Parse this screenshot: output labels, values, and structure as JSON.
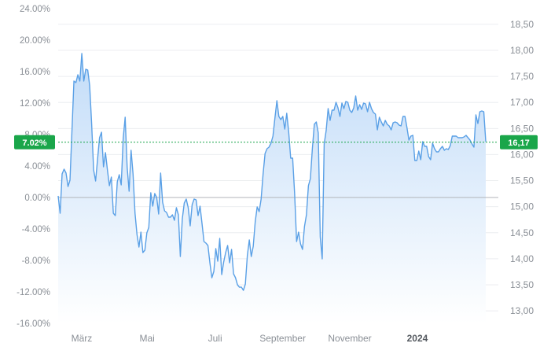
{
  "chart_data": {
    "type": "area",
    "title": "",
    "xlabel": "",
    "ylabel": "",
    "left_axis": {
      "unit": "%",
      "ylim": [
        -16,
        24
      ],
      "ticks": [
        "24.00%",
        "20.00%",
        "16.00%",
        "12.00%",
        "8.00%",
        "4.00%",
        "0.00%",
        "-4.00%",
        "-8.00%",
        "-12.00%",
        "-16.00%"
      ],
      "tick_values": [
        24,
        20,
        16,
        12,
        8,
        4,
        0,
        -4,
        -8,
        -12,
        -16
      ]
    },
    "right_axis": {
      "ylim": [
        12.76,
        18.8
      ],
      "ticks": [
        "18,50",
        "18,00",
        "17,50",
        "17,00",
        "16,50",
        "16,00",
        "15,50",
        "15,00",
        "14,50",
        "14,00",
        "13,50",
        "13,00"
      ],
      "tick_values": [
        18.5,
        18.0,
        17.5,
        17.0,
        16.5,
        16.0,
        15.5,
        15.0,
        14.5,
        14.0,
        13.5,
        13.0
      ]
    },
    "x_ticks": [
      {
        "label": "März",
        "pos": 0.055,
        "bold": false
      },
      {
        "label": "Mai",
        "pos": 0.208,
        "bold": false
      },
      {
        "label": "Juli",
        "pos": 0.367,
        "bold": false
      },
      {
        "label": "September",
        "pos": 0.525,
        "bold": false
      },
      {
        "label": "November",
        "pos": 0.682,
        "bold": false
      },
      {
        "label": "2024",
        "pos": 0.84,
        "bold": true
      }
    ],
    "current": {
      "percent_label": "7.02%",
      "price_label": "16,17",
      "percent_value": 7.02
    },
    "colors": {
      "line": "#5aa0e6",
      "fill_top": "#c2dcf8",
      "fill_bottom": "#ffffff",
      "badge": "#1aa64a",
      "zero_line": "#b0b3b8",
      "grid": "#eceef0"
    },
    "grid": true,
    "series": [
      {
        "values": [
          0.2,
          -2.0,
          3.0,
          3.6,
          3.1,
          1.4,
          2.2,
          8.5,
          14.8,
          14.6,
          15.6,
          14.8,
          18.3,
          14.8,
          16.3,
          16.2,
          14.2,
          9.3,
          3.5,
          2.1,
          4.9,
          7.6,
          8.3,
          3.9,
          5.7,
          3.5,
          1.5,
          2.6,
          -2.0,
          -2.3,
          2.0,
          2.9,
          1.6,
          7.5,
          10.2,
          3.9,
          0.8,
          6.0,
          3.0,
          -2.0,
          -4.7,
          -6.3,
          -4.4,
          -7.0,
          -6.7,
          -4.5,
          -3.8,
          0.6,
          -1.1,
          0.5,
          0.0,
          -2.1,
          3.1,
          -0.6,
          -1.7,
          -1.9,
          -2.5,
          -2.5,
          -2.2,
          -2.9,
          -1.3,
          -2.2,
          -7.5,
          -2.7,
          -0.7,
          -0.2,
          -1.3,
          -3.6,
          -0.9,
          -0.2,
          -0.3,
          -2.3,
          -1.1,
          -3.3,
          -5.6,
          -5.8,
          -6.1,
          -8.3,
          -10.2,
          -9.4,
          -6.5,
          -8.1,
          -5.2,
          -9.8,
          -8.2,
          -7.0,
          -6.1,
          -8.3,
          -6.6,
          -9.7,
          -10.2,
          -11.1,
          -11.4,
          -11.4,
          -11.8,
          -11.0,
          -7.4,
          -5.4,
          -7.5,
          -6.2,
          -3.1,
          -1.2,
          -1.8,
          -0.2,
          3.0,
          5.6,
          6.2,
          6.4,
          6.9,
          7.8,
          10.1,
          12.3,
          10.3,
          9.9,
          10.3,
          8.7,
          10.7,
          8.3,
          5.0,
          5.0,
          0.5,
          -5.6,
          -4.4,
          -5.9,
          -6.6,
          -3.7,
          -2.2,
          1.5,
          2.4,
          6.2,
          9.3,
          9.6,
          8.2,
          -5.0,
          -7.8,
          6.8,
          8.5,
          11.3,
          9.8,
          11.1,
          11.1,
          12.1,
          11.4,
          10.3,
          12.0,
          11.3,
          12.2,
          12.1,
          11.1,
          10.8,
          11.4,
          12.9,
          11.1,
          11.8,
          11.2,
          12.0,
          11.9,
          10.9,
          12.1,
          11.3,
          10.8,
          10.6,
          8.6,
          10.2,
          9.6,
          9.1,
          9.8,
          9.3,
          9.1,
          8.6,
          9.5,
          9.6,
          9.5,
          9.2,
          9.1,
          10.3,
          10.3,
          8.9,
          7.3,
          7.8,
          7.9,
          4.7,
          4.7,
          5.9,
          4.8,
          7.1,
          6.5,
          6.5,
          5.2,
          4.8,
          6.9,
          6.2,
          5.8,
          5.8,
          6.2,
          6.5,
          6.0,
          6.2,
          6.1,
          6.6,
          7.8,
          7.8,
          7.8,
          7.6,
          7.6,
          7.6,
          7.7,
          7.9,
          7.6,
          7.3,
          6.8,
          6.4,
          10.5,
          9.4,
          10.9,
          11.0,
          10.9,
          7.1
        ]
      }
    ]
  }
}
